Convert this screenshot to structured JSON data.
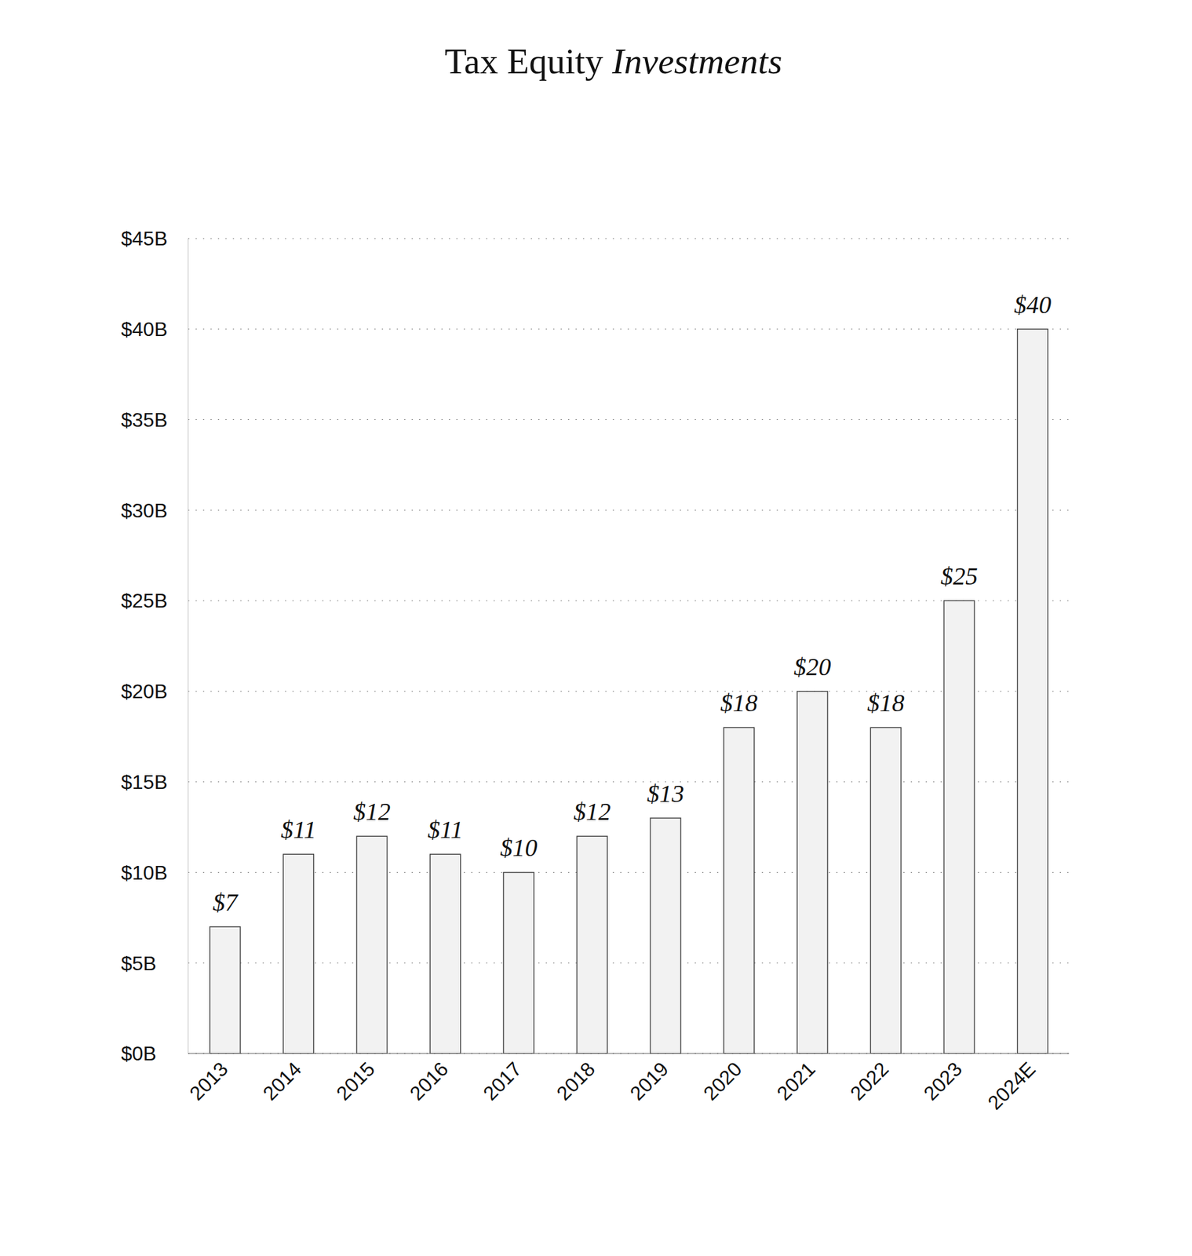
{
  "chart_data": {
    "type": "bar",
    "title": "Tax Equity Investments",
    "categories": [
      "2013",
      "2014",
      "2015",
      "2016",
      "2017",
      "2018",
      "2019",
      "2020",
      "2021",
      "2022",
      "2023",
      "2024E"
    ],
    "values": [
      7,
      11,
      12,
      11,
      10,
      12,
      13,
      18,
      20,
      18,
      25,
      40
    ],
    "value_labels": [
      "$7",
      "$11",
      "$12",
      "$11",
      "$10",
      "$12",
      "$13",
      "$18",
      "$20",
      "$18",
      "$25",
      "$40"
    ],
    "color": "#f2f2f2",
    "ylim": [
      0,
      45
    ],
    "yticks": [
      {
        "value": 0,
        "label": "$0B"
      },
      {
        "value": 5,
        "label": "$5B"
      },
      {
        "value": 10,
        "label": "$10B"
      },
      {
        "value": 15,
        "label": "$15B"
      },
      {
        "value": 20,
        "label": "$20B"
      },
      {
        "value": 25,
        "label": "$25B"
      },
      {
        "value": 30,
        "label": "$30B"
      },
      {
        "value": 35,
        "label": "$35B"
      },
      {
        "value": 40,
        "label": "$40B"
      },
      {
        "value": 45,
        "label": "$45B"
      }
    ],
    "grid": true,
    "data_labels": true
  }
}
